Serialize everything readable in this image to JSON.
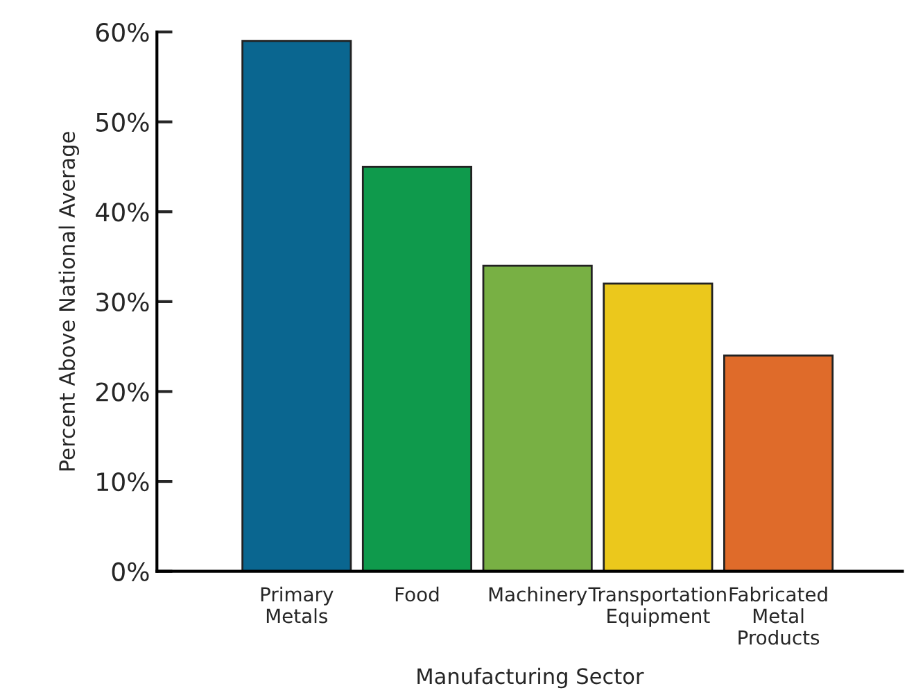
{
  "chart_data": {
    "type": "bar",
    "xlabel": "Manufacturing Sector",
    "ylabel": "Percent Above National Average",
    "categories": [
      "Primary\nMetals",
      "Food",
      "Machinery",
      "Transportation\nEquipment",
      "Fabricated\nMetal\nProducts"
    ],
    "values": [
      59,
      45,
      34,
      32,
      24
    ],
    "colors": [
      "#0a6690",
      "#0f9a4c",
      "#78b044",
      "#ebc81c",
      "#df6b2a"
    ],
    "ylim": [
      0,
      60
    ],
    "yticks": [
      {
        "value": 0,
        "label": "0%"
      },
      {
        "value": 10,
        "label": "10%"
      },
      {
        "value": 20,
        "label": "20%"
      },
      {
        "value": 30,
        "label": "30%"
      },
      {
        "value": 40,
        "label": "40%"
      },
      {
        "value": 50,
        "label": "50%"
      },
      {
        "value": 60,
        "label": "60%"
      }
    ],
    "grid": false,
    "legend": false
  }
}
